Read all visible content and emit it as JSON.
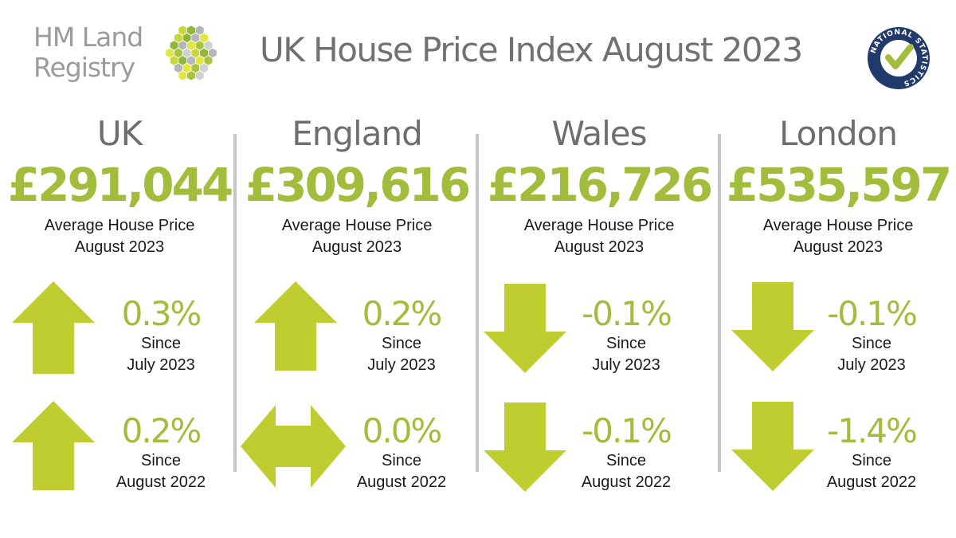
{
  "logo": {
    "line1": "HM Land",
    "line2": "Registry"
  },
  "title": "UK House Price Index August 2023",
  "badge": {
    "text": "NATIONAL STATISTICS"
  },
  "colors": {
    "accent": "#a2bd3b",
    "arrow": "#c0cd30",
    "grey_text": "#707172",
    "divider": "#c5c6c7"
  },
  "regions": [
    {
      "name": "UK",
      "price": "£291,044",
      "price_label_line1": "Average House Price",
      "price_label_line2": "August 2023",
      "monthly": {
        "value": "0.3%",
        "direction": "up",
        "since_line1": "Since",
        "since_line2": "July 2023"
      },
      "annual": {
        "value": "0.2%",
        "direction": "up",
        "since_line1": "Since",
        "since_line2": "August 2022"
      }
    },
    {
      "name": "England",
      "price": "£309,616",
      "price_label_line1": "Average House Price",
      "price_label_line2": "August 2023",
      "monthly": {
        "value": "0.2%",
        "direction": "up",
        "since_line1": "Since",
        "since_line2": "July 2023"
      },
      "annual": {
        "value": "0.0%",
        "direction": "flat",
        "since_line1": "Since",
        "since_line2": "August 2022"
      }
    },
    {
      "name": "Wales",
      "price": "£216,726",
      "price_label_line1": "Average House Price",
      "price_label_line2": "August 2023",
      "monthly": {
        "value": "-0.1%",
        "direction": "down",
        "since_line1": "Since",
        "since_line2": "July 2023"
      },
      "annual": {
        "value": "-0.1%",
        "direction": "down",
        "since_line1": "Since",
        "since_line2": "August 2022"
      }
    },
    {
      "name": "London",
      "price": "£535,597",
      "price_label_line1": "Average House Price",
      "price_label_line2": "August 2023",
      "monthly": {
        "value": "-0.1%",
        "direction": "down",
        "since_line1": "Since",
        "since_line2": "July 2023"
      },
      "annual": {
        "value": "-1.4%",
        "direction": "down",
        "since_line1": "Since",
        "since_line2": "August 2022"
      }
    }
  ]
}
